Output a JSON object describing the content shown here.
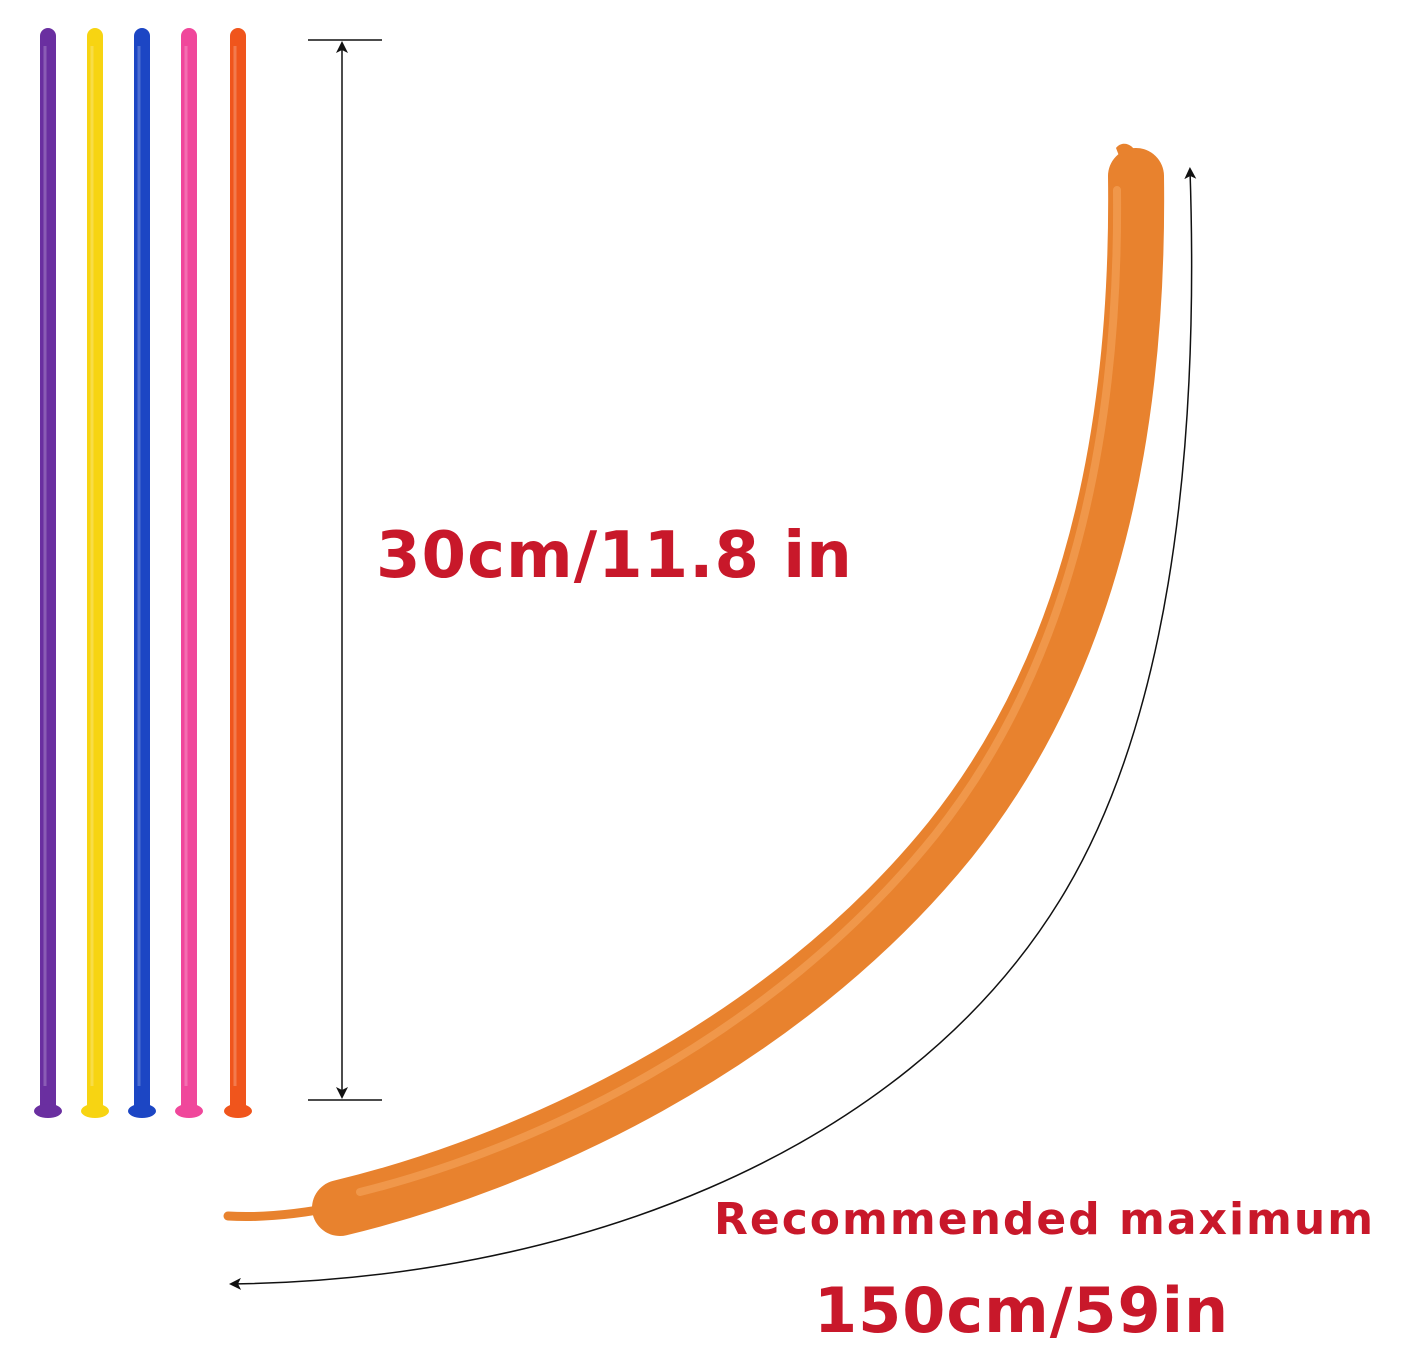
{
  "deflated_length_label": "30cm/11.8 in",
  "recommended_caption": "Recommended  maximum",
  "max_length_label": "150cm/59in",
  "colors": {
    "label_red": "#c8182a",
    "inflated_balloon": "#e8822e",
    "arrow_line": "#111111"
  },
  "balloons": [
    {
      "name": "purple",
      "color": "#6a2fa0"
    },
    {
      "name": "yellow",
      "color": "#f7d412"
    },
    {
      "name": "blue",
      "color": "#1c46c4"
    },
    {
      "name": "pink",
      "color": "#f0479b"
    },
    {
      "name": "orange",
      "color": "#f0551c"
    }
  ]
}
